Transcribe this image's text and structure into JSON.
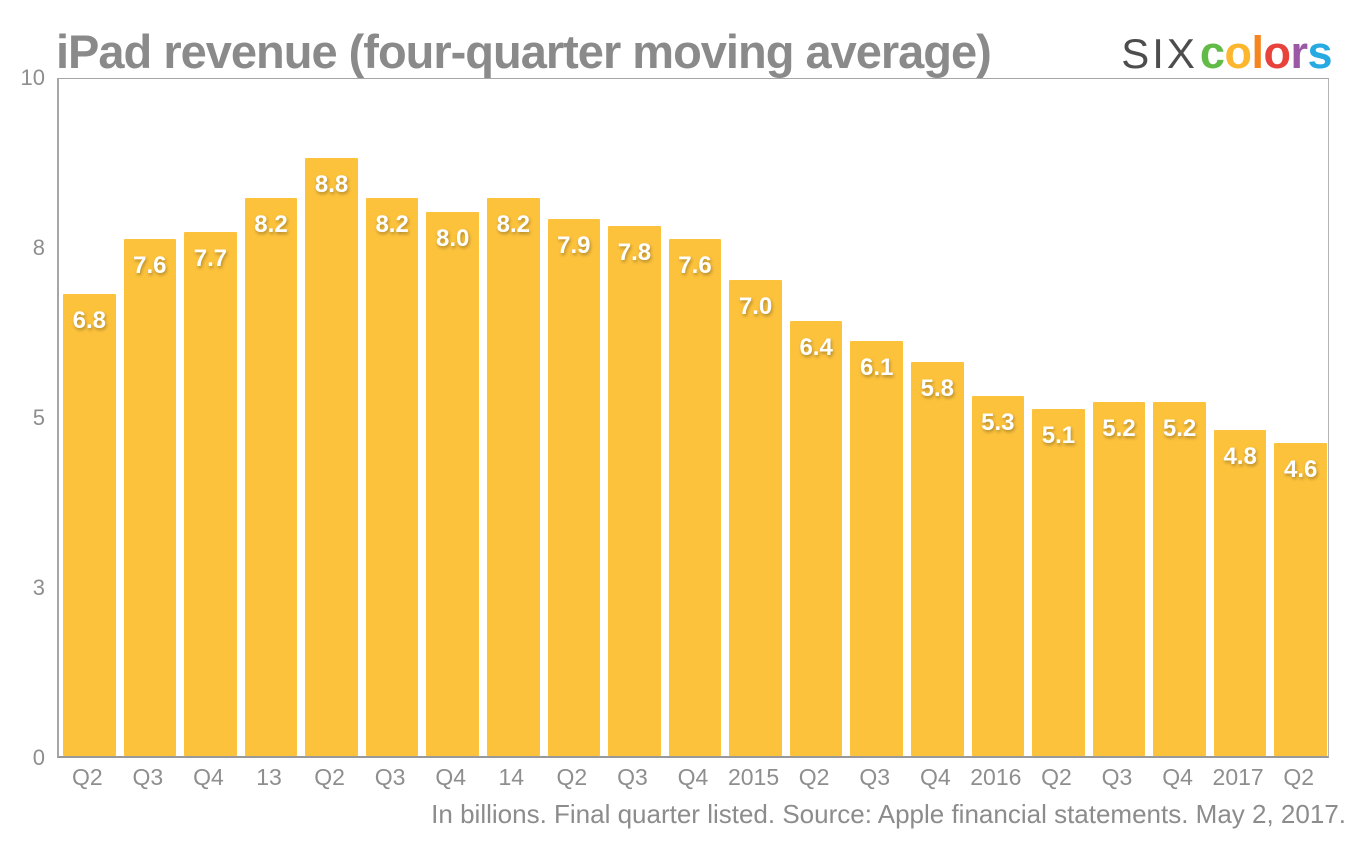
{
  "logo": {
    "prefix": "SIX",
    "prefix_color": "#4d4d4d",
    "letters": [
      {
        "char": "c",
        "color": "#61bb46"
      },
      {
        "char": "o",
        "color": "#fdb72e"
      },
      {
        "char": "l",
        "color": "#f6851f"
      },
      {
        "char": "o",
        "color": "#e8423c"
      },
      {
        "char": "r",
        "color": "#9b59a5"
      },
      {
        "char": "s",
        "color": "#27aae1"
      }
    ]
  },
  "chart_data": {
    "type": "bar",
    "title": "iPad revenue (four-quarter moving average)",
    "categories": [
      "Q2",
      "Q3",
      "Q4",
      "13",
      "Q2",
      "Q3",
      "Q4",
      "14",
      "Q2",
      "Q3",
      "Q4",
      "2015",
      "Q2",
      "Q3",
      "Q4",
      "2016",
      "Q2",
      "Q3",
      "Q4",
      "2017",
      "Q2"
    ],
    "values": [
      6.8,
      7.6,
      7.7,
      8.2,
      8.8,
      8.2,
      8.0,
      8.2,
      7.9,
      7.8,
      7.6,
      7.0,
      6.4,
      6.1,
      5.8,
      5.3,
      5.1,
      5.2,
      5.2,
      4.8,
      4.6
    ],
    "value_labels": [
      "6.8",
      "7.6",
      "7.7",
      "8.2",
      "8.8",
      "8.2",
      "8.0",
      "8.2",
      "7.9",
      "7.8",
      "7.6",
      "7.0",
      "6.4",
      "6.1",
      "5.8",
      "5.3",
      "5.1",
      "5.2",
      "5.2",
      "4.8",
      "4.6"
    ],
    "ylim": [
      0,
      10
    ],
    "y_ticks": [
      {
        "value": 0,
        "label": "0"
      },
      {
        "value": 2.5,
        "label": "3"
      },
      {
        "value": 5,
        "label": "5"
      },
      {
        "value": 7.5,
        "label": "8"
      },
      {
        "value": 10,
        "label": "10"
      }
    ],
    "grid": false,
    "legend": false,
    "bar_color": "#fcc23c",
    "value_label_color": "#ffffff",
    "axis_label_color": "#8e8e8e",
    "title_color": "#8a8a8a",
    "caption": "In billions. Final quarter listed. Source: Apple financial statements. May 2, 2017."
  }
}
